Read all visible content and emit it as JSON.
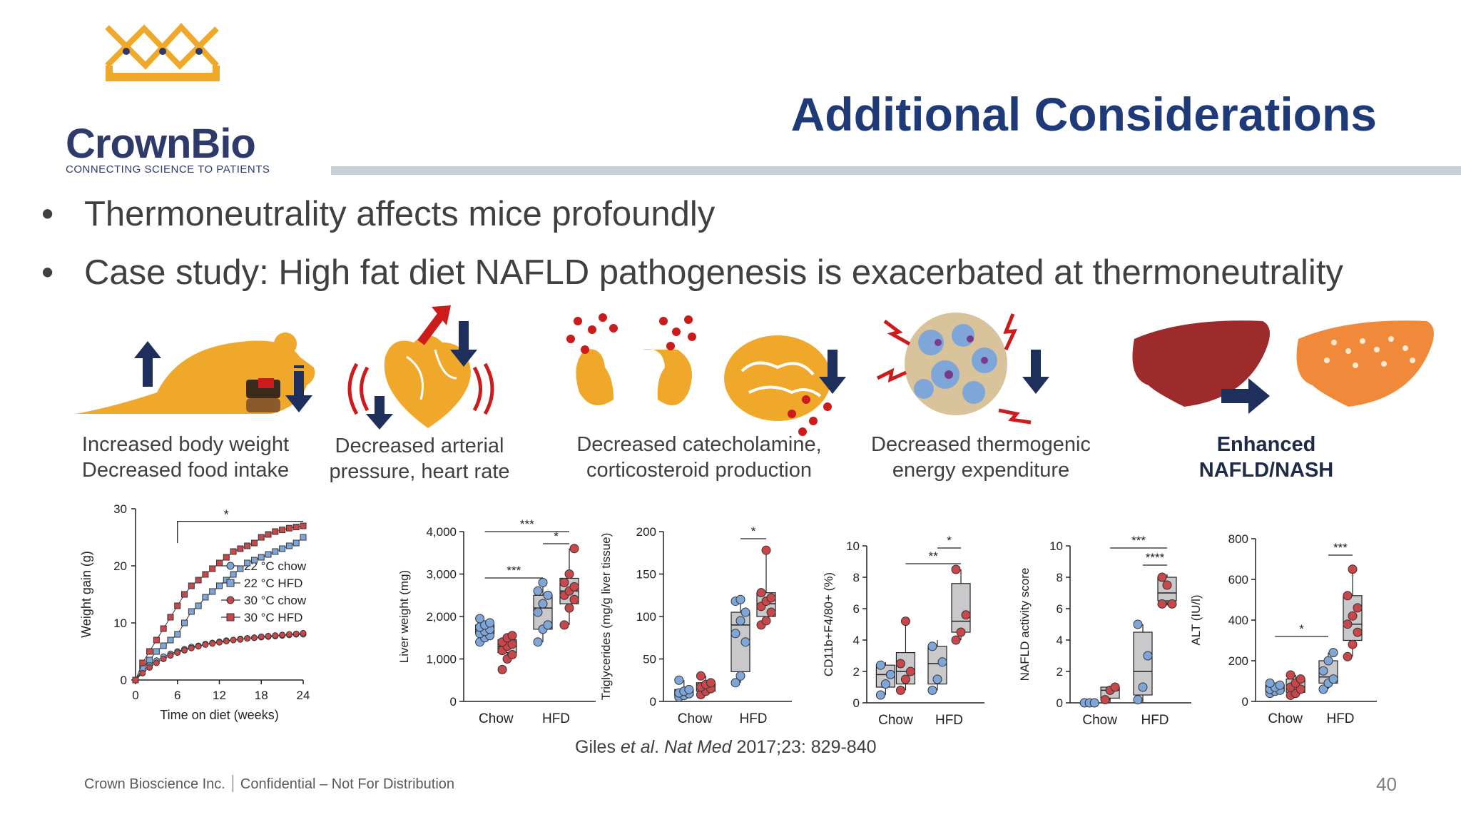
{
  "logo": {
    "name": "CrownBio",
    "tagline": "CONNECTING SCIENCE TO PATIENTS",
    "color": "#f0a82a"
  },
  "title": "Additional Considerations",
  "bullets": [
    "Thermoneutrality affects mice profoundly",
    "Case study:  High fat diet NAFLD pathogenesis is exacerbated at thermoneutrality"
  ],
  "effects": [
    {
      "line1": "Increased body weight",
      "line2": "Decreased food intake",
      "icon": "mouse-icon"
    },
    {
      "line1": "Decreased arterial",
      "line2": "pressure, heart rate",
      "icon": "heart-icon"
    },
    {
      "line1": "Decreased catecholamine,",
      "line2": "corticosteroid production",
      "icon": "adrenal-brain-icon"
    },
    {
      "line1": "Decreased thermogenic",
      "line2": "energy expenditure",
      "icon": "adipocyte-icon"
    },
    {
      "line1": "Enhanced",
      "line2": "NAFLD/NASH",
      "icon": "liver-icon"
    }
  ],
  "colors": {
    "accent": "#f0a82a",
    "navy": "#1f3a78",
    "arrow": "#1f2f5c",
    "red": "#cc1b1b",
    "blue_dot": "#7ea6d8",
    "red_dot": "#c9474a"
  },
  "chart_data": [
    {
      "type": "line",
      "xlabel": "Time on diet (weeks)",
      "ylabel": "Weight gain (g)",
      "xticks": [
        0,
        6,
        12,
        18,
        24
      ],
      "yticks": [
        0,
        10,
        20,
        30
      ],
      "xlim": [
        0,
        24
      ],
      "ylim": [
        0,
        30
      ],
      "significance": "*",
      "series": [
        {
          "name": "22 °C chow",
          "marker": "circle",
          "color": "#7ea6d8",
          "x": [
            0,
            1,
            2,
            3,
            4,
            5,
            6,
            7,
            8,
            9,
            10,
            11,
            12,
            13,
            14,
            15,
            16,
            17,
            18,
            19,
            20,
            21,
            22,
            23,
            24
          ],
          "y": [
            0,
            1.5,
            2.6,
            3.4,
            4.1,
            4.6,
            5.0,
            5.4,
            5.8,
            6.0,
            6.3,
            6.5,
            6.7,
            6.9,
            7.0,
            7.2,
            7.3,
            7.4,
            7.5,
            7.6,
            7.7,
            7.8,
            7.9,
            8.0,
            8.0
          ]
        },
        {
          "name": "22 °C HFD",
          "marker": "square",
          "color": "#7ea6d8",
          "x": [
            0,
            1,
            2,
            3,
            4,
            5,
            6,
            7,
            8,
            9,
            10,
            11,
            12,
            13,
            14,
            15,
            16,
            17,
            18,
            19,
            20,
            21,
            22,
            23,
            24
          ],
          "y": [
            0,
            2,
            3.5,
            5,
            6,
            7,
            8,
            10,
            12,
            13,
            14.5,
            15.5,
            16.5,
            17.5,
            18.5,
            19.5,
            20.5,
            21,
            21.5,
            22,
            22.5,
            23,
            23.5,
            24,
            25
          ]
        },
        {
          "name": "30 °C chow",
          "marker": "circle",
          "color": "#c9474a",
          "x": [
            0,
            1,
            2,
            3,
            4,
            5,
            6,
            7,
            8,
            9,
            10,
            11,
            12,
            13,
            14,
            15,
            16,
            17,
            18,
            19,
            20,
            21,
            22,
            23,
            24
          ],
          "y": [
            0,
            1.2,
            2.2,
            3.0,
            3.7,
            4.3,
            4.8,
            5.2,
            5.6,
            5.9,
            6.2,
            6.4,
            6.6,
            6.8,
            7.0,
            7.1,
            7.3,
            7.4,
            7.6,
            7.7,
            7.8,
            7.9,
            8.0,
            8.1,
            8.2
          ]
        },
        {
          "name": "30 °C HFD",
          "marker": "square",
          "color": "#c9474a",
          "x": [
            0,
            1,
            2,
            3,
            4,
            5,
            6,
            7,
            8,
            9,
            10,
            11,
            12,
            13,
            14,
            15,
            16,
            17,
            18,
            19,
            20,
            21,
            22,
            23,
            24
          ],
          "y": [
            0,
            3,
            5,
            7,
            9,
            11,
            13,
            15,
            16.5,
            17.5,
            18.5,
            19.5,
            20.5,
            21.5,
            22.5,
            23,
            23.5,
            24,
            25,
            25.5,
            26,
            26.3,
            26.6,
            26.8,
            27
          ]
        }
      ]
    },
    {
      "type": "box",
      "ylabel": "Liver weight (mg)",
      "categories": [
        "Chow",
        "HFD"
      ],
      "yticks": [
        "0",
        "1,000",
        "2,000",
        "3,000",
        "4,000"
      ],
      "ylim": [
        0,
        4000
      ],
      "groups": [
        {
          "cat": 0,
          "temp": "22 °C",
          "color": "#7ea6d8",
          "box": [
            1500,
            1600,
            1700,
            1800,
            1900
          ],
          "points": [
            1400,
            1500,
            1550,
            1600,
            1650,
            1700,
            1750,
            1800,
            1850,
            1950
          ]
        },
        {
          "cat": 0,
          "temp": "30 °C",
          "color": "#c9474a",
          "box": [
            1000,
            1150,
            1300,
            1450,
            1600
          ],
          "points": [
            750,
            1000,
            1100,
            1200,
            1300,
            1350,
            1400,
            1500,
            1550
          ]
        },
        {
          "cat": 1,
          "temp": "22 °C",
          "color": "#7ea6d8",
          "box": [
            1400,
            1700,
            2200,
            2500,
            2800
          ],
          "points": [
            1400,
            1700,
            1800,
            2100,
            2300,
            2500,
            2600,
            2800
          ]
        },
        {
          "cat": 1,
          "temp": "30 °C",
          "color": "#c9474a",
          "box": [
            1800,
            2300,
            2600,
            2900,
            3600
          ],
          "points": [
            1800,
            2200,
            2400,
            2500,
            2600,
            2700,
            2800,
            3000,
            3600
          ]
        }
      ],
      "significance": [
        "***",
        "***",
        "*"
      ]
    },
    {
      "type": "box",
      "ylabel": "Triglycerides (mg/g liver tissue)",
      "categories": [
        "Chow",
        "HFD"
      ],
      "yticks": [
        "0",
        "50",
        "100",
        "150",
        "200"
      ],
      "ylim": [
        0,
        200
      ],
      "groups": [
        {
          "cat": 0,
          "temp": "22 °C",
          "color": "#7ea6d8",
          "box": [
            5,
            7,
            10,
            14,
            25
          ],
          "points": [
            5,
            7,
            9,
            10,
            12,
            14,
            25
          ]
        },
        {
          "cat": 0,
          "temp": "30 °C",
          "color": "#c9474a",
          "box": [
            8,
            12,
            16,
            22,
            30
          ],
          "points": [
            8,
            12,
            15,
            17,
            20,
            22,
            30
          ]
        },
        {
          "cat": 1,
          "temp": "22 °C",
          "color": "#7ea6d8",
          "box": [
            22,
            35,
            90,
            105,
            120
          ],
          "points": [
            22,
            30,
            70,
            80,
            95,
            105,
            118,
            120
          ]
        },
        {
          "cat": 1,
          "temp": "30 °C",
          "color": "#c9474a",
          "box": [
            90,
            100,
            115,
            128,
            178
          ],
          "points": [
            90,
            95,
            105,
            112,
            118,
            122,
            128,
            178
          ]
        }
      ],
      "significance": [
        "*"
      ]
    },
    {
      "type": "box",
      "ylabel": "CD11b+F4/80+ (%)",
      "categories": [
        "Chow",
        "HFD"
      ],
      "yticks": [
        "0",
        "2",
        "4",
        "6",
        "8",
        "10"
      ],
      "ylim": [
        0,
        10
      ],
      "groups": [
        {
          "cat": 0,
          "temp": "22 °C",
          "color": "#7ea6d8",
          "box": [
            0.5,
            1.0,
            1.8,
            2.4,
            2.6
          ],
          "points": [
            0.5,
            1.2,
            1.8,
            2.4
          ]
        },
        {
          "cat": 0,
          "temp": "30 °C",
          "color": "#c9474a",
          "box": [
            0.8,
            1.2,
            2.0,
            3.2,
            5.2
          ],
          "points": [
            0.8,
            1.5,
            2.0,
            2.5,
            5.2
          ]
        },
        {
          "cat": 1,
          "temp": "22 °C",
          "color": "#7ea6d8",
          "box": [
            0.8,
            1.2,
            2.5,
            3.6,
            4.0
          ],
          "points": [
            0.8,
            1.5,
            2.6,
            3.6
          ]
        },
        {
          "cat": 1,
          "temp": "30 °C",
          "color": "#c9474a",
          "box": [
            4.0,
            4.5,
            5.2,
            7.6,
            8.5
          ],
          "points": [
            4.0,
            4.5,
            5.6,
            8.5
          ]
        }
      ],
      "significance": [
        "**",
        "*"
      ]
    },
    {
      "type": "box",
      "ylabel": "NAFLD activity score",
      "categories": [
        "Chow",
        "HFD"
      ],
      "yticks": [
        "0",
        "2",
        "4",
        "6",
        "8",
        "10"
      ],
      "ylim": [
        0,
        10
      ],
      "groups": [
        {
          "cat": 0,
          "temp": "22 °C",
          "color": "#7ea6d8",
          "box": [
            0,
            0,
            0,
            0,
            0
          ],
          "points": [
            0,
            0,
            0
          ]
        },
        {
          "cat": 0,
          "temp": "30 °C",
          "color": "#c9474a",
          "box": [
            0,
            0.3,
            0.8,
            1,
            1
          ],
          "points": [
            0.2,
            0.8,
            1.0
          ]
        },
        {
          "cat": 1,
          "temp": "22 °C",
          "color": "#7ea6d8",
          "box": [
            0,
            0.5,
            2.0,
            4.5,
            5.0
          ],
          "points": [
            0.2,
            1.0,
            3.0,
            5.0
          ]
        },
        {
          "cat": 1,
          "temp": "30 °C",
          "color": "#c9474a",
          "box": [
            6.2,
            6.5,
            7.0,
            8.0,
            8.2
          ],
          "points": [
            6.3,
            7.5,
            6.3,
            8.0
          ]
        }
      ],
      "significance": [
        "****",
        "***"
      ]
    },
    {
      "type": "box",
      "ylabel": "ALT (IU/l)",
      "categories": [
        "Chow",
        "HFD"
      ],
      "yticks": [
        "0",
        "200",
        "400",
        "600",
        "800"
      ],
      "ylim": [
        0,
        800
      ],
      "groups": [
        {
          "cat": 0,
          "temp": "22 °C",
          "color": "#7ea6d8",
          "box": [
            40,
            50,
            60,
            80,
            90
          ],
          "points": [
            40,
            50,
            55,
            60,
            70,
            80,
            90
          ]
        },
        {
          "cat": 0,
          "temp": "30 °C",
          "color": "#c9474a",
          "box": [
            30,
            45,
            70,
            110,
            130
          ],
          "points": [
            30,
            40,
            60,
            70,
            90,
            110,
            130
          ]
        },
        {
          "cat": 1,
          "temp": "22 °C",
          "color": "#7ea6d8",
          "box": [
            60,
            90,
            120,
            200,
            240
          ],
          "points": [
            60,
            90,
            110,
            150,
            200,
            240
          ]
        },
        {
          "cat": 1,
          "temp": "30 °C",
          "color": "#c9474a",
          "box": [
            220,
            300,
            380,
            520,
            650
          ],
          "points": [
            220,
            280,
            340,
            380,
            420,
            460,
            520,
            650
          ]
        }
      ],
      "significance": [
        "*",
        "***"
      ]
    }
  ],
  "citation": {
    "authors": "Giles ",
    "etal": "et al",
    "sep": ". ",
    "journal": "Nat Med",
    "ref": " 2017;23: 829-840"
  },
  "footer": {
    "company": "Crown Bioscience Inc.",
    "confidential": "Confidential – Not For Distribution"
  },
  "page_number": "40"
}
